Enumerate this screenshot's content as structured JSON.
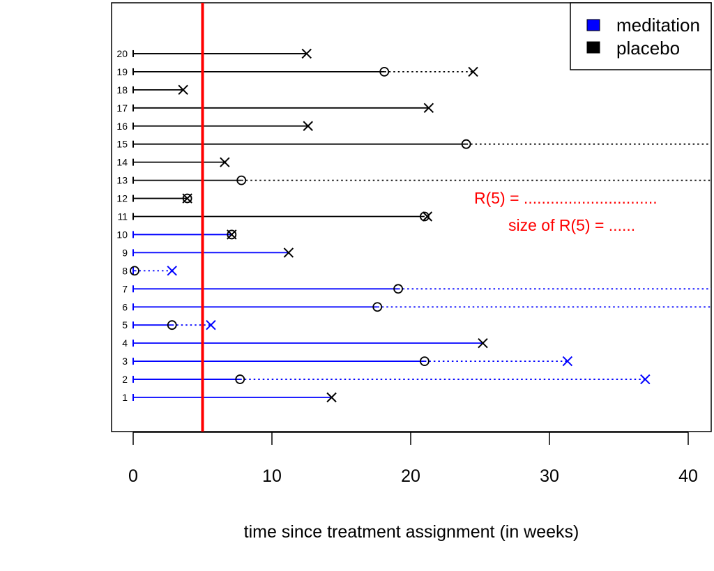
{
  "chart_data": {
    "type": "timeline",
    "xlabel": "time since treatment assignment (in weeks)",
    "xlim": [
      -1.6,
      41.6
    ],
    "x_ticks": [
      0,
      10,
      20,
      30,
      40
    ],
    "x_tick_labels": [
      "0",
      "10",
      "20",
      "30",
      "40"
    ],
    "legend": {
      "placement": "top-right",
      "entries": [
        {
          "label": "meditation",
          "color": "#0000ff"
        },
        {
          "label": "placebo",
          "color": "#000000"
        }
      ]
    },
    "reference_line": {
      "x": 5,
      "color": "#ff0000"
    },
    "annotations": [
      "R(5) = ..............................",
      "size of R(5) = ......"
    ],
    "annotation_color": "#ff0000",
    "x_axis_end": 42,
    "subjects": [
      {
        "id": 1,
        "group": "meditation",
        "solid_end": 14.3,
        "dotted_end": null,
        "circle": false,
        "cross": true,
        "cross_color": "#000000"
      },
      {
        "id": 2,
        "group": "meditation",
        "solid_end": 7.7,
        "dotted_end": 36.9,
        "circle": true,
        "cross": true,
        "cross_color": "#0000ff"
      },
      {
        "id": 3,
        "group": "meditation",
        "solid_end": 21.0,
        "dotted_end": 31.3,
        "circle": true,
        "cross": true,
        "cross_color": "#0000ff"
      },
      {
        "id": 4,
        "group": "meditation",
        "solid_end": 25.2,
        "dotted_end": null,
        "circle": false,
        "cross": true,
        "cross_color": "#000000"
      },
      {
        "id": 5,
        "group": "meditation",
        "solid_end": 2.8,
        "dotted_end": 5.6,
        "circle": true,
        "cross": true,
        "cross_color": "#0000ff"
      },
      {
        "id": 6,
        "group": "meditation",
        "solid_end": 17.6,
        "dotted_end": 42,
        "circle": true,
        "cross": false,
        "cross_color": null
      },
      {
        "id": 7,
        "group": "meditation",
        "solid_end": 19.1,
        "dotted_end": 42,
        "circle": true,
        "cross": false,
        "cross_color": null
      },
      {
        "id": 8,
        "group": "meditation",
        "solid_end": 0.1,
        "dotted_end": 2.8,
        "circle": true,
        "cross": true,
        "cross_color": "#0000ff"
      },
      {
        "id": 9,
        "group": "meditation",
        "solid_end": 11.2,
        "dotted_end": null,
        "circle": false,
        "cross": true,
        "cross_color": "#000000"
      },
      {
        "id": 10,
        "group": "meditation",
        "solid_end": 7.1,
        "dotted_end": null,
        "circle": true,
        "cross": true,
        "cross_color": "#000000"
      },
      {
        "id": 11,
        "group": "placebo",
        "solid_end": 21.0,
        "dotted_end": null,
        "circle": true,
        "cross": true,
        "cross_color": "#000000",
        "cross_at": 21.2
      },
      {
        "id": 12,
        "group": "placebo",
        "solid_end": 3.9,
        "dotted_end": null,
        "circle": true,
        "cross": true,
        "cross_color": "#000000"
      },
      {
        "id": 13,
        "group": "placebo",
        "solid_end": 7.8,
        "dotted_end": 42,
        "circle": true,
        "cross": false,
        "cross_color": null
      },
      {
        "id": 14,
        "group": "placebo",
        "solid_end": 6.6,
        "dotted_end": null,
        "circle": false,
        "cross": true,
        "cross_color": "#000000"
      },
      {
        "id": 15,
        "group": "placebo",
        "solid_end": 24.0,
        "dotted_end": 42,
        "circle": true,
        "cross": false,
        "cross_color": null
      },
      {
        "id": 16,
        "group": "placebo",
        "solid_end": 12.6,
        "dotted_end": null,
        "circle": false,
        "cross": true,
        "cross_color": "#000000"
      },
      {
        "id": 17,
        "group": "placebo",
        "solid_end": 21.3,
        "dotted_end": null,
        "circle": false,
        "cross": true,
        "cross_color": "#000000"
      },
      {
        "id": 18,
        "group": "placebo",
        "solid_end": 3.6,
        "dotted_end": null,
        "circle": false,
        "cross": true,
        "cross_color": "#000000"
      },
      {
        "id": 19,
        "group": "placebo",
        "solid_end": 18.1,
        "dotted_end": 24.5,
        "circle": true,
        "cross": true,
        "cross_color": "#000000"
      },
      {
        "id": 20,
        "group": "placebo",
        "solid_end": 12.5,
        "dotted_end": null,
        "circle": false,
        "cross": true,
        "cross_color": "#000000"
      }
    ]
  }
}
